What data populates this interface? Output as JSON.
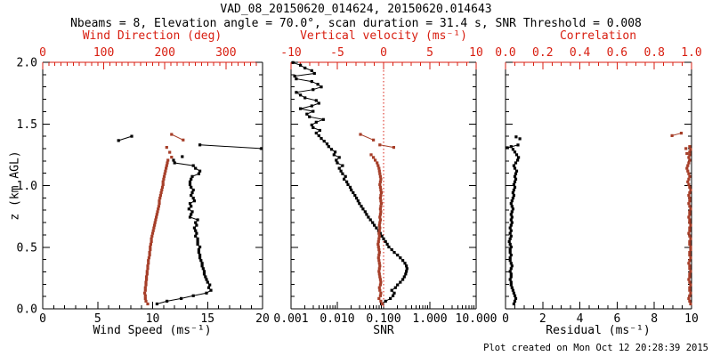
{
  "title": "VAD_08_20150620_014624, 20150620.014643",
  "subtitle": "Nbeams = 8, Elevation angle = 70.0°, scan duration = 31.4 s, SNR Threshold = 0.008",
  "footer": "Plot created on Mon Oct 12 20:28:39 2015",
  "colors": {
    "axis_red": "#d81e10",
    "data_red": "#a63e28",
    "black": "#000000",
    "background": "#ffffff"
  },
  "y_axis": {
    "label": "z (km AGL)",
    "range": [
      0,
      2
    ],
    "ticks": [
      0,
      0.5,
      1,
      1.5,
      2
    ],
    "tick_labels": [
      "0.0",
      "0.5",
      "1.0",
      "1.5",
      "2.0"
    ],
    "minor_step": 0.1
  },
  "chart_data": [
    {
      "type": "scatter",
      "panel": "wind",
      "x_bottom": {
        "label": "Wind Speed (ms⁻¹)",
        "scale": "linear",
        "range": [
          0,
          20
        ],
        "ticks": [
          0,
          5,
          10,
          15,
          20
        ],
        "tick_labels": [
          "0",
          "5",
          "10",
          "15",
          "20"
        ],
        "minor_step": 1
      },
      "x_top": {
        "label": "Wind Direction (deg)",
        "scale": "linear",
        "range": [
          0,
          360
        ],
        "ticks": [
          0,
          100,
          200,
          300
        ],
        "tick_labels": [
          "0",
          "100",
          "200",
          "300"
        ],
        "minor_step": 10
      },
      "series": [
        {
          "name": "wind-speed-profile",
          "axis": "bottom",
          "color": "black",
          "connect": true,
          "z0": 0.04,
          "dz": 0.022,
          "values": [
            10.4,
            11.3,
            12.6,
            13.7,
            14.9,
            15.3,
            15.1,
            15.2,
            15.0,
            14.9,
            14.8,
            14.7,
            14.7,
            14.6,
            14.5,
            14.5,
            14.4,
            14.3,
            14.3,
            14.2,
            14.2,
            14.3,
            14.1,
            14.1,
            14.1,
            13.9,
            14.0,
            13.9,
            13.8,
            14.0,
            13.9,
            14.1,
            13.4,
            13.5,
            13.6,
            13.3,
            13.5,
            13.4,
            13.8,
            13.7,
            13.5,
            13.6,
            13.7,
            13.5,
            13.4,
            13.4,
            13.5,
            13.6,
            14.2,
            14.3,
            13.9,
            13.7,
            12.0,
            11.9
          ]
        },
        {
          "name": "wind-speed-upper-line",
          "axis": "bottom",
          "color": "black",
          "connect": true,
          "z": [
            1.33,
            1.3
          ],
          "values": [
            14.3,
            19.9
          ]
        },
        {
          "name": "wind-speed-upper-pair",
          "axis": "bottom",
          "color": "black",
          "connect": true,
          "z": [
            1.365,
            1.4
          ],
          "values": [
            6.9,
            8.1
          ]
        },
        {
          "name": "wind-speed-lone-dot",
          "axis": "bottom",
          "color": "black",
          "connect": false,
          "z": [
            1.235
          ],
          "values": [
            12.7
          ]
        },
        {
          "name": "wind-direction-profile",
          "axis": "top",
          "color": "red",
          "connect": false,
          "z0": 0.04,
          "dz": 0.022,
          "values": [
            172,
            169,
            168,
            168,
            167,
            168,
            168,
            169,
            169,
            170,
            170,
            171,
            171,
            172,
            172,
            173,
            173,
            174,
            175,
            175,
            176,
            176,
            177,
            178,
            178,
            179,
            180,
            181,
            182,
            183,
            184,
            185,
            186,
            187,
            188,
            189,
            190,
            191,
            191,
            192,
            193,
            194,
            195,
            196,
            197,
            197,
            198,
            199,
            200,
            201,
            202,
            203,
            204,
            205
          ]
        },
        {
          "name": "wind-direction-upper-seg",
          "axis": "top",
          "color": "red",
          "connect": true,
          "z": [
            1.415,
            1.37
          ],
          "values": [
            211,
            230
          ]
        },
        {
          "name": "wind-direction-upper-dots",
          "axis": "top",
          "color": "red",
          "connect": false,
          "z": [
            1.31,
            1.27,
            1.23
          ],
          "values": [
            203,
            208,
            211
          ]
        }
      ]
    },
    {
      "type": "scatter",
      "panel": "snr",
      "x_bottom": {
        "label": "SNR",
        "scale": "log",
        "range": [
          0.001,
          10
        ],
        "ticks": [
          0.001,
          0.01,
          0.1,
          1,
          10
        ],
        "tick_labels": [
          "0.001",
          "0.010",
          "0.100",
          "1.000",
          "10.000"
        ]
      },
      "x_top": {
        "label": "Vertical velocity (ms⁻¹)",
        "scale": "linear",
        "range": [
          -10,
          10
        ],
        "ticks": [
          -10,
          -5,
          0,
          5,
          10
        ],
        "tick_labels": [
          "-10",
          "-5",
          "0",
          "5",
          "10"
        ],
        "minor_step": 1
      },
      "zero_line": 0,
      "series": [
        {
          "name": "snr-profile",
          "axis": "bottom",
          "color": "black",
          "connect": true,
          "z0": 0.04,
          "dz": 0.022,
          "values": [
            0.09,
            0.11,
            0.14,
            0.16,
            0.17,
            0.15,
            0.18,
            0.2,
            0.23,
            0.26,
            0.28,
            0.3,
            0.31,
            0.32,
            0.31,
            0.29,
            0.26,
            0.23,
            0.2,
            0.17,
            0.15,
            0.13,
            0.12,
            0.11,
            0.1,
            0.092,
            0.085,
            0.078,
            0.07,
            0.063,
            0.058,
            0.052,
            0.047,
            0.043,
            0.04,
            0.036,
            0.033,
            0.03,
            0.028,
            0.026,
            0.024,
            0.022,
            0.02,
            0.019,
            0.017,
            0.016,
            0.014,
            0.015,
            0.013,
            0.012,
            0.011,
            0.013,
            0.01,
            0.0095,
            0.011,
            0.0085,
            0.009,
            0.0075,
            0.0065,
            0.006,
            0.0052,
            0.0045,
            0.004,
            0.0035,
            0.0042,
            0.003,
            0.0028,
            0.0035,
            0.005,
            0.0025,
            0.0022,
            0.003,
            0.0016,
            0.0028,
            0.004,
            0.0035,
            0.002,
            0.0016,
            0.0013,
            0.003,
            0.0045,
            0.0038,
            0.0028,
            0.0013,
            0.0012,
            0.0032,
            0.0028,
            0.002,
            0.0016,
            0.0011
          ]
        },
        {
          "name": "vertical-velocity-profile",
          "axis": "top",
          "color": "red",
          "connect": false,
          "z0": 0.04,
          "dz": 0.022,
          "values": [
            -0.15,
            -0.3,
            -0.5,
            -0.35,
            -0.3,
            -0.4,
            -0.45,
            -0.35,
            -0.3,
            -0.35,
            -0.4,
            -0.45,
            -0.5,
            -0.45,
            -0.4,
            -0.45,
            -0.5,
            -0.55,
            -0.5,
            -0.45,
            -0.5,
            -0.55,
            -0.6,
            -0.55,
            -0.5,
            -0.45,
            -0.5,
            -0.45,
            -0.4,
            -0.45,
            -0.4,
            -0.35,
            -0.4,
            -0.35,
            -0.3,
            -0.35,
            -0.3,
            -0.25,
            -0.3,
            -0.35,
            -0.3,
            -0.25,
            -0.3,
            -0.35,
            -0.4,
            -0.35,
            -0.3,
            -0.35,
            -0.4,
            -0.45,
            -0.5,
            -0.6,
            -0.7,
            -0.9,
            -1.1,
            -1.35
          ]
        },
        {
          "name": "vv-upper-seg-1",
          "axis": "top",
          "color": "red",
          "connect": true,
          "z": [
            1.415,
            1.37
          ],
          "values": [
            -2.5,
            -1.1
          ]
        },
        {
          "name": "vv-upper-seg-2",
          "axis": "top",
          "color": "red",
          "connect": true,
          "z": [
            1.33,
            1.31
          ],
          "values": [
            -0.4,
            1.1
          ]
        }
      ]
    },
    {
      "type": "scatter",
      "panel": "residual",
      "x_bottom": {
        "label": "Residual (ms⁻¹)",
        "scale": "linear",
        "range": [
          0,
          10
        ],
        "ticks": [
          0,
          2,
          4,
          6,
          8,
          10
        ],
        "tick_labels": [
          "0",
          "2",
          "4",
          "6",
          "8",
          "10"
        ],
        "minor_step": 0.5
      },
      "x_top": {
        "label": "Correlation",
        "scale": "linear",
        "range": [
          0,
          1
        ],
        "ticks": [
          0,
          0.2,
          0.4,
          0.6,
          0.8,
          1
        ],
        "tick_labels": [
          "0.0",
          "0.2",
          "0.4",
          "0.6",
          "0.8",
          "1.0"
        ],
        "minor_step": 0.05
      },
      "series": [
        {
          "name": "residual-profile",
          "axis": "bottom",
          "color": "black",
          "connect": false,
          "z0": 0.04,
          "dz": 0.022,
          "values": [
            0.45,
            0.5,
            0.55,
            0.5,
            0.45,
            0.4,
            0.35,
            0.3,
            0.3,
            0.25,
            0.3,
            0.3,
            0.25,
            0.3,
            0.35,
            0.3,
            0.25,
            0.25,
            0.3,
            0.25,
            0.25,
            0.3,
            0.25,
            0.2,
            0.25,
            0.3,
            0.25,
            0.3,
            0.25,
            0.3,
            0.35,
            0.3,
            0.35,
            0.3,
            0.35,
            0.4,
            0.35,
            0.3,
            0.35,
            0.4,
            0.45,
            0.4,
            0.45,
            0.5,
            0.45,
            0.5,
            0.55,
            0.5,
            0.55,
            0.6,
            0.5,
            0.45,
            0.55,
            0.65,
            0.7,
            0.6,
            0.5,
            0.4,
            0.3
          ]
        },
        {
          "name": "residual-hook",
          "axis": "bottom",
          "color": "black",
          "connect": true,
          "z": [
            1.307,
            1.329
          ],
          "values": [
            0.1,
            0.67
          ]
        },
        {
          "name": "residual-upper-pair",
          "axis": "bottom",
          "color": "black",
          "connect": false,
          "z": [
            1.395,
            1.38
          ],
          "values": [
            0.57,
            0.77
          ]
        },
        {
          "name": "correlation-profile",
          "axis": "top",
          "color": "red",
          "connect": false,
          "z0": 0.04,
          "dz": 0.022,
          "values": [
            0.995,
            0.99,
            0.985,
            0.99,
            0.995,
            0.99,
            0.99,
            0.995,
            0.99,
            0.985,
            0.99,
            0.99,
            0.995,
            0.99,
            0.99,
            0.985,
            0.99,
            0.995,
            0.99,
            0.99,
            0.995,
            0.995,
            0.99,
            0.99,
            0.995,
            0.99,
            0.985,
            0.99,
            0.99,
            0.995,
            0.99,
            0.99,
            0.985,
            0.99,
            0.99,
            0.995,
            0.99,
            0.985,
            0.99,
            0.99,
            0.985,
            0.99,
            0.995,
            0.99,
            0.985,
            0.98,
            0.985,
            0.99,
            0.985,
            0.98,
            0.975,
            0.98,
            0.985,
            0.99,
            0.985,
            0.99,
            0.99,
            0.995,
            0.99
          ]
        },
        {
          "name": "correlation-upper-seg",
          "axis": "top",
          "color": "red",
          "connect": true,
          "z": [
            1.405,
            1.425
          ],
          "values": [
            0.895,
            0.945
          ]
        },
        {
          "name": "correlation-upper-dots",
          "axis": "top",
          "color": "red",
          "connect": false,
          "z": [
            1.3,
            1.26
          ],
          "values": [
            0.97,
            0.975
          ]
        }
      ]
    }
  ]
}
